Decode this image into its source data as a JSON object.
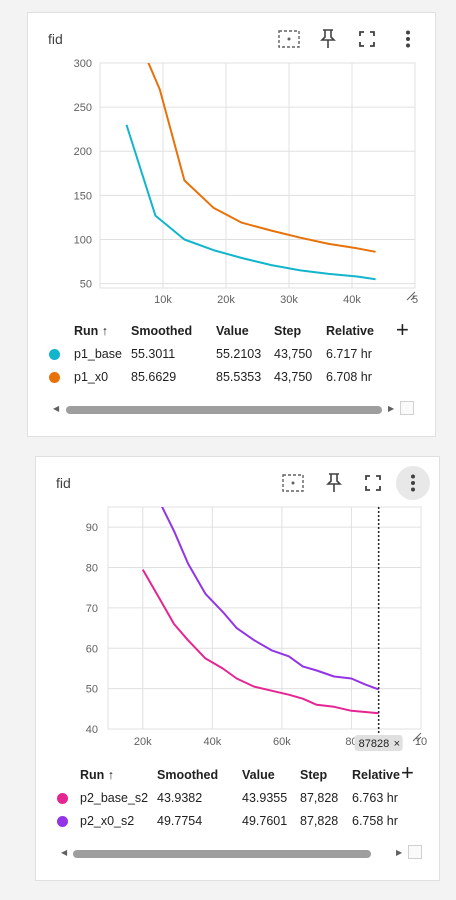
{
  "cards": [
    {
      "title": "fid",
      "chart_data": {
        "type": "line",
        "title": "fid",
        "xlabel": "",
        "ylabel": "",
        "xlim": [
          0,
          50000
        ],
        "ylim": [
          45,
          300
        ],
        "x_ticks": [
          "10k",
          "20k",
          "30k",
          "40k",
          "5"
        ],
        "x_tick_values": [
          10000,
          20000,
          30000,
          40000,
          50000
        ],
        "y_ticks": [
          "50",
          "100",
          "150",
          "200",
          "250",
          "300"
        ],
        "y_tick_values": [
          50,
          100,
          150,
          200,
          250,
          300
        ],
        "grid": true,
        "series": [
          {
            "name": "p1_base",
            "color": "#12b5cb",
            "x": [
              4200,
              8800,
              13400,
              18000,
              22500,
              27200,
              31800,
              36300,
              40800,
              43750
            ],
            "y": [
              230,
              127,
              100,
              88,
              79,
              71,
              65,
              61,
              58,
              55
            ]
          },
          {
            "name": "p1_x0",
            "color": "#e8710a",
            "x": [
              7400,
              9500,
              13400,
              18000,
              22500,
              27200,
              31800,
              36300,
              40800,
              43750
            ],
            "y": [
              305,
              270,
              167,
              136,
              119,
              110,
              102,
              95,
              90,
              86
            ]
          }
        ]
      },
      "table": {
        "headers": [
          "Run ↑",
          "Smoothed",
          "Value",
          "Step",
          "Relative"
        ],
        "rows": [
          {
            "color": "#12b5cb",
            "run": "p1_base",
            "smoothed": "55.3011",
            "value": "55.2103",
            "step": "43,750",
            "relative": "6.717 hr"
          },
          {
            "color": "#e8710a",
            "run": "p1_x0",
            "smoothed": "85.6629",
            "value": "85.5353",
            "step": "43,750",
            "relative": "6.708 hr"
          }
        ]
      }
    },
    {
      "title": "fid",
      "chart_data": {
        "type": "line",
        "title": "fid",
        "xlabel": "",
        "ylabel": "",
        "xlim": [
          10000,
          100000
        ],
        "ylim": [
          40,
          95
        ],
        "x_ticks": [
          "20k",
          "40k",
          "60k",
          "80",
          "10"
        ],
        "x_tick_values": [
          20000,
          40000,
          60000,
          80000,
          100000
        ],
        "y_ticks": [
          "40",
          "50",
          "60",
          "70",
          "80",
          "90"
        ],
        "y_tick_values": [
          40,
          50,
          60,
          70,
          80,
          90
        ],
        "grid": true,
        "hover_step": "87828",
        "hover_x": 87828,
        "series": [
          {
            "name": "p2_base_s2",
            "color": "#e52592",
            "x": [
              20000,
              25000,
              29000,
              33000,
              38000,
              43000,
              47000,
              52000,
              57000,
              62000,
              66000,
              70000,
              75000,
              80000,
              84000,
              87828
            ],
            "y": [
              79.5,
              72,
              66,
              62,
              57.5,
              55,
              52.5,
              50.5,
              49.5,
              48.5,
              47.5,
              46,
              45.5,
              44.5,
              44.2,
              43.9
            ]
          },
          {
            "name": "p2_x0_s2",
            "color": "#9334e6",
            "x": [
              25000,
              29000,
              33000,
              38000,
              43000,
              47000,
              52000,
              57000,
              62000,
              66000,
              70000,
              75000,
              80000,
              84000,
              87828
            ],
            "y": [
              96,
              89,
              81,
              73.5,
              69,
              65,
              62,
              59.5,
              58,
              55.5,
              54.5,
              53,
              52.5,
              51,
              49.8
            ]
          }
        ]
      },
      "table": {
        "headers": [
          "Run ↑",
          "Smoothed",
          "Value",
          "Step",
          "Relative"
        ],
        "rows": [
          {
            "color": "#e52592",
            "run": "p2_base_s2",
            "smoothed": "43.9382",
            "value": "43.9355",
            "step": "87,828",
            "relative": "6.763 hr"
          },
          {
            "color": "#9334e6",
            "run": "p2_x0_s2",
            "smoothed": "49.7754",
            "value": "49.7601",
            "step": "87,828",
            "relative": "6.758 hr"
          }
        ]
      }
    }
  ]
}
